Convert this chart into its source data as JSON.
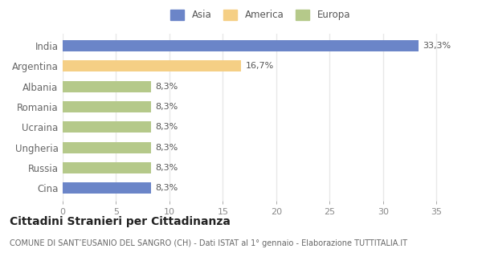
{
  "categories": [
    "India",
    "Argentina",
    "Albania",
    "Romania",
    "Ucraina",
    "Ungheria",
    "Russia",
    "Cina"
  ],
  "values": [
    33.3,
    16.7,
    8.3,
    8.3,
    8.3,
    8.3,
    8.3,
    8.3
  ],
  "colors": [
    "#6b85c8",
    "#f5cf85",
    "#b5c98a",
    "#b5c98a",
    "#b5c98a",
    "#b5c98a",
    "#b5c98a",
    "#6b85c8"
  ],
  "labels": [
    "33,3%",
    "16,7%",
    "8,3%",
    "8,3%",
    "8,3%",
    "8,3%",
    "8,3%",
    "8,3%"
  ],
  "legend_items": [
    {
      "label": "Asia",
      "color": "#6b85c8"
    },
    {
      "label": "America",
      "color": "#f5cf85"
    },
    {
      "label": "Europa",
      "color": "#b5c98a"
    }
  ],
  "xlim": [
    0,
    37
  ],
  "xticks": [
    0,
    5,
    10,
    15,
    20,
    25,
    30,
    35
  ],
  "title": "Cittadini Stranieri per Cittadinanza",
  "subtitle": "COMUNE DI SANT’EUSANIO DEL SANGRO (CH) - Dati ISTAT al 1° gennaio - Elaborazione TUTTITALIA.IT",
  "background_color": "#ffffff",
  "grid_color": "#e8e8e8",
  "bar_height": 0.55,
  "label_fontsize": 8,
  "ytick_fontsize": 8.5,
  "xtick_fontsize": 8,
  "title_fontsize": 10,
  "subtitle_fontsize": 7,
  "legend_fontsize": 8.5
}
